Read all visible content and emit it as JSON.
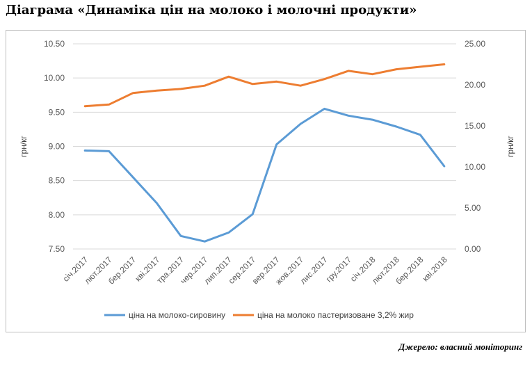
{
  "title": "Діаграма «Динаміка цін на молоко і молочні продукти»",
  "source": "Джерело: власний моніторинг",
  "chart_data": {
    "type": "line",
    "categories": [
      "січ.2017",
      "лют.2017",
      "бер.2017",
      "кві.2017",
      "тра.2017",
      "чер.2017",
      "лип.2017",
      "сер.2017",
      "вер.2017",
      "жов.2017",
      "лис.2017",
      "гру.2017",
      "січ.2018",
      "лют.2018",
      "бер.2018",
      "кві.2018"
    ],
    "y_left": {
      "label": "грн/кг",
      "min": 7.5,
      "max": 10.5,
      "ticks": [
        "7.50",
        "8.00",
        "8.50",
        "9.00",
        "9.50",
        "10.00",
        "10.50"
      ]
    },
    "y_right": {
      "label": "грн/кг",
      "min": 0,
      "max": 25,
      "ticks": [
        "0.00",
        "5.00",
        "10.00",
        "15.00",
        "20.00",
        "25.00"
      ]
    },
    "series": [
      {
        "name": "ціна на молоко-сировину",
        "axis": "left",
        "color": "#5b9bd5",
        "values": [
          8.94,
          8.93,
          8.55,
          8.17,
          7.69,
          7.61,
          7.74,
          8.01,
          9.03,
          9.33,
          9.55,
          9.45,
          9.39,
          9.29,
          9.17,
          8.71
        ]
      },
      {
        "name": "ціна на молоко пастеризоване 3,2% жир",
        "axis": "right",
        "color": "#ed7d31",
        "values": [
          17.4,
          17.6,
          19.0,
          19.3,
          19.5,
          19.9,
          21.0,
          20.1,
          20.4,
          19.9,
          20.7,
          21.7,
          21.3,
          21.9,
          22.2,
          22.5
        ]
      }
    ],
    "grid": true,
    "legend_position": "bottom"
  }
}
